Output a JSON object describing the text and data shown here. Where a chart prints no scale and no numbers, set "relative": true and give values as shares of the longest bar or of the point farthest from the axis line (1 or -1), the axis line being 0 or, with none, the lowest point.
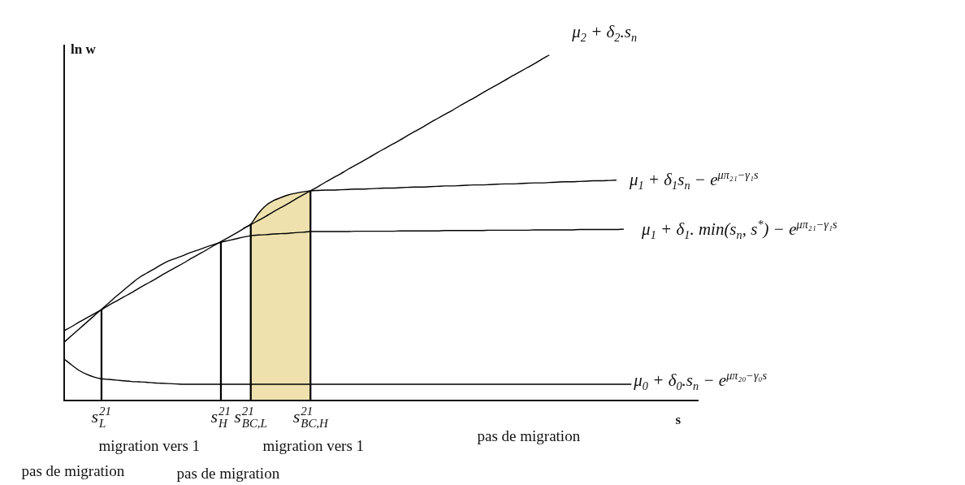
{
  "chart_data": {
    "type": "line",
    "relative": true,
    "xlabel": "s",
    "ylabel": "ln w",
    "categories": [
      null,
      null,
      null,
      null,
      null,
      "s$_{L}$$^{21}$",
      null,
      null,
      null,
      null,
      null,
      null,
      null,
      null,
      null,
      null,
      null,
      null,
      null,
      null,
      null,
      "s$_{H}$$^{21}$",
      null,
      null,
      null,
      "s$_{BC,L}$$^{21}$",
      null,
      null,
      null,
      null,
      null,
      null,
      null,
      "s$_{BC,H}$$^{21}$",
      null,
      null,
      null,
      null,
      null,
      null,
      null,
      null,
      null,
      null,
      null,
      null,
      null,
      null,
      null,
      null,
      null,
      null,
      null,
      null,
      null,
      null,
      null,
      null,
      null,
      null,
      null,
      null,
      null,
      null,
      null,
      null,
      null,
      null,
      null,
      null,
      null,
      null,
      null,
      null,
      null,
      null,
      null,
      null,
      null,
      null,
      null,
      null,
      null,
      null,
      null,
      null
    ],
    "series": [
      {
        "type": "area",
        "color": "#eee1ae",
        "values": [
          null,
          null,
          null,
          null,
          null,
          null,
          null,
          null,
          null,
          null,
          null,
          null,
          null,
          null,
          null,
          null,
          null,
          null,
          null,
          null,
          null,
          null,
          null,
          null,
          null,
          0.511,
          0.541,
          0.564,
          0.578,
          0.587,
          0.595,
          0.6,
          0.604,
          0.607,
          null,
          null,
          null,
          null,
          null,
          null,
          null,
          null,
          null,
          null,
          null,
          null,
          null,
          null,
          null,
          null,
          null,
          null,
          null,
          null,
          null,
          null,
          null,
          null,
          null,
          null,
          null,
          null,
          null,
          null,
          null,
          null,
          null,
          null,
          null,
          null,
          null,
          null,
          null,
          null,
          null,
          null,
          null,
          null,
          null,
          null,
          null,
          null,
          null,
          null,
          null,
          null
        ]
      },
      {
        "name": "μ$_{2}$ + δ$_{2}$.s$_{n}$",
        "color": "#000000",
        "values": [
          0.202,
          0.214,
          0.227,
          0.239,
          0.251,
          0.263,
          0.276,
          0.288,
          0.3,
          0.312,
          0.325,
          0.337,
          0.349,
          0.362,
          0.374,
          0.386,
          0.398,
          0.411,
          0.423,
          0.435,
          0.448,
          0.46,
          0.472,
          0.484,
          0.497,
          0.509,
          0.521,
          0.533,
          0.546,
          0.558,
          0.57,
          0.583,
          0.595,
          0.607,
          0.619,
          0.632,
          0.644,
          0.656,
          0.669,
          0.681,
          0.693,
          0.705,
          0.718,
          0.73,
          0.742,
          0.754,
          0.767,
          0.779,
          0.791,
          0.804,
          0.816,
          0.828,
          0.84,
          0.853,
          0.865,
          0.877,
          0.89,
          0.902,
          0.914,
          0.926,
          0.939,
          0.951,
          0.963,
          0.975,
          0.988,
          1,
          null,
          null,
          null,
          null,
          null,
          null,
          null,
          null,
          null,
          null,
          null,
          null,
          null,
          null,
          null,
          null,
          null,
          null,
          null,
          null
        ]
      },
      {
        "name": "μ$_{1}$ + δ$_{1}$s$_{n}$ − e$^{μπ₂₁−γ₁s}$",
        "color": "#000000",
        "values": [
          null,
          null,
          null,
          null,
          null,
          null,
          null,
          null,
          null,
          null,
          null,
          null,
          null,
          null,
          null,
          null,
          null,
          null,
          null,
          null,
          null,
          null,
          null,
          null,
          0.498,
          0.511,
          0.541,
          0.564,
          0.578,
          0.587,
          0.595,
          0.6,
          0.604,
          0.607,
          0.608,
          0.609,
          0.609,
          0.61,
          0.611,
          0.612,
          0.612,
          0.613,
          0.614,
          0.615,
          0.615,
          0.616,
          0.617,
          0.618,
          0.618,
          0.619,
          0.62,
          0.621,
          0.621,
          0.622,
          0.623,
          0.624,
          0.624,
          0.625,
          0.626,
          0.627,
          0.627,
          0.628,
          0.629,
          0.63,
          0.63,
          0.631,
          0.632,
          0.633,
          0.633,
          0.634,
          0.635,
          0.636,
          0.636,
          0.637,
          0.638,
          null,
          null,
          null,
          null,
          null,
          null,
          null,
          null,
          null,
          null,
          null
        ]
      },
      {
        "name": "μ$_{1}$ + δ$_{1}$. min(s$_{n}$, s$^{*}$) − e$^{μπ₂₁−γ₁s}$",
        "color": "#000000",
        "values": [
          0.169,
          0.188,
          0.207,
          0.226,
          0.245,
          0.264,
          0.283,
          0.302,
          0.32,
          0.338,
          0.355,
          0.368,
          0.38,
          0.393,
          0.404,
          0.412,
          0.42,
          0.429,
          0.436,
          0.444,
          0.451,
          0.458,
          0.463,
          0.468,
          0.473,
          0.477,
          0.479,
          0.48,
          0.482,
          0.483,
          0.484,
          0.486,
          0.487,
          0.489,
          0.489,
          0.489,
          0.489,
          0.489,
          0.489,
          0.49,
          0.49,
          0.49,
          0.49,
          0.49,
          0.49,
          0.491,
          0.491,
          0.491,
          0.491,
          0.491,
          0.491,
          0.492,
          0.492,
          0.492,
          0.492,
          0.492,
          0.492,
          0.493,
          0.493,
          0.493,
          0.493,
          0.493,
          0.493,
          0.494,
          0.494,
          0.494,
          0.494,
          0.494,
          0.494,
          0.495,
          0.495,
          0.495,
          0.495,
          0.495,
          0.495,
          0.496,
          null,
          null,
          null,
          null,
          null,
          null,
          null,
          null,
          null,
          null
        ]
      },
      {
        "name": "μ$_{0}$ + δ$_{0}$.s$_{n}$ − e$^{μπ₂₀−γ₀s}$",
        "color": "#000000",
        "values": [
          0.12,
          0.103,
          0.087,
          0.076,
          0.068,
          0.063,
          0.061,
          0.059,
          0.057,
          0.055,
          0.054,
          0.053,
          0.051,
          0.05,
          0.049,
          0.048,
          0.047,
          0.047,
          0.047,
          0.047,
          0.047,
          0.047,
          0.047,
          0.047,
          0.047,
          0.047,
          0.047,
          0.047,
          0.047,
          0.047,
          0.047,
          0.047,
          0.047,
          0.047,
          0.047,
          0.047,
          0.047,
          0.047,
          0.047,
          0.047,
          0.047,
          0.047,
          0.047,
          0.047,
          0.047,
          0.047,
          0.047,
          0.047,
          0.047,
          0.047,
          0.047,
          0.047,
          0.047,
          0.047,
          0.047,
          0.047,
          0.047,
          0.047,
          0.047,
          0.047,
          0.047,
          0.047,
          0.047,
          0.047,
          0.047,
          0.047,
          0.047,
          0.047,
          0.047,
          0.047,
          0.047,
          0.047,
          0.047,
          0.047,
          0.047,
          0.047,
          0.047,
          null,
          null,
          null,
          null,
          null,
          null,
          null,
          null,
          null
        ]
      },
      {
        "type": "bar",
        "color": "#000000",
        "values": [
          null,
          null,
          null,
          null,
          null,
          0.263,
          null,
          null,
          null,
          null,
          null,
          null,
          null,
          null,
          null,
          null,
          null,
          null,
          null,
          null,
          null,
          0.459,
          null,
          null,
          null,
          0.509,
          null,
          null,
          null,
          null,
          null,
          null,
          null,
          0.607,
          null,
          null,
          null,
          null,
          null,
          null,
          null,
          null,
          null,
          null,
          null,
          null,
          null,
          null,
          null,
          null,
          null,
          null,
          null,
          null,
          null,
          null,
          null,
          null,
          null,
          null,
          null,
          null,
          null,
          null,
          null,
          null,
          null,
          null,
          null,
          null,
          null,
          null,
          null,
          null,
          null,
          null,
          null,
          null,
          null,
          null,
          null,
          null,
          null,
          null,
          null,
          null
        ]
      }
    ],
    "annotations": [
      "pas de migration",
      "migration vers 1",
      "pas de migration",
      "migration vers 1",
      "pas de migration"
    ]
  }
}
